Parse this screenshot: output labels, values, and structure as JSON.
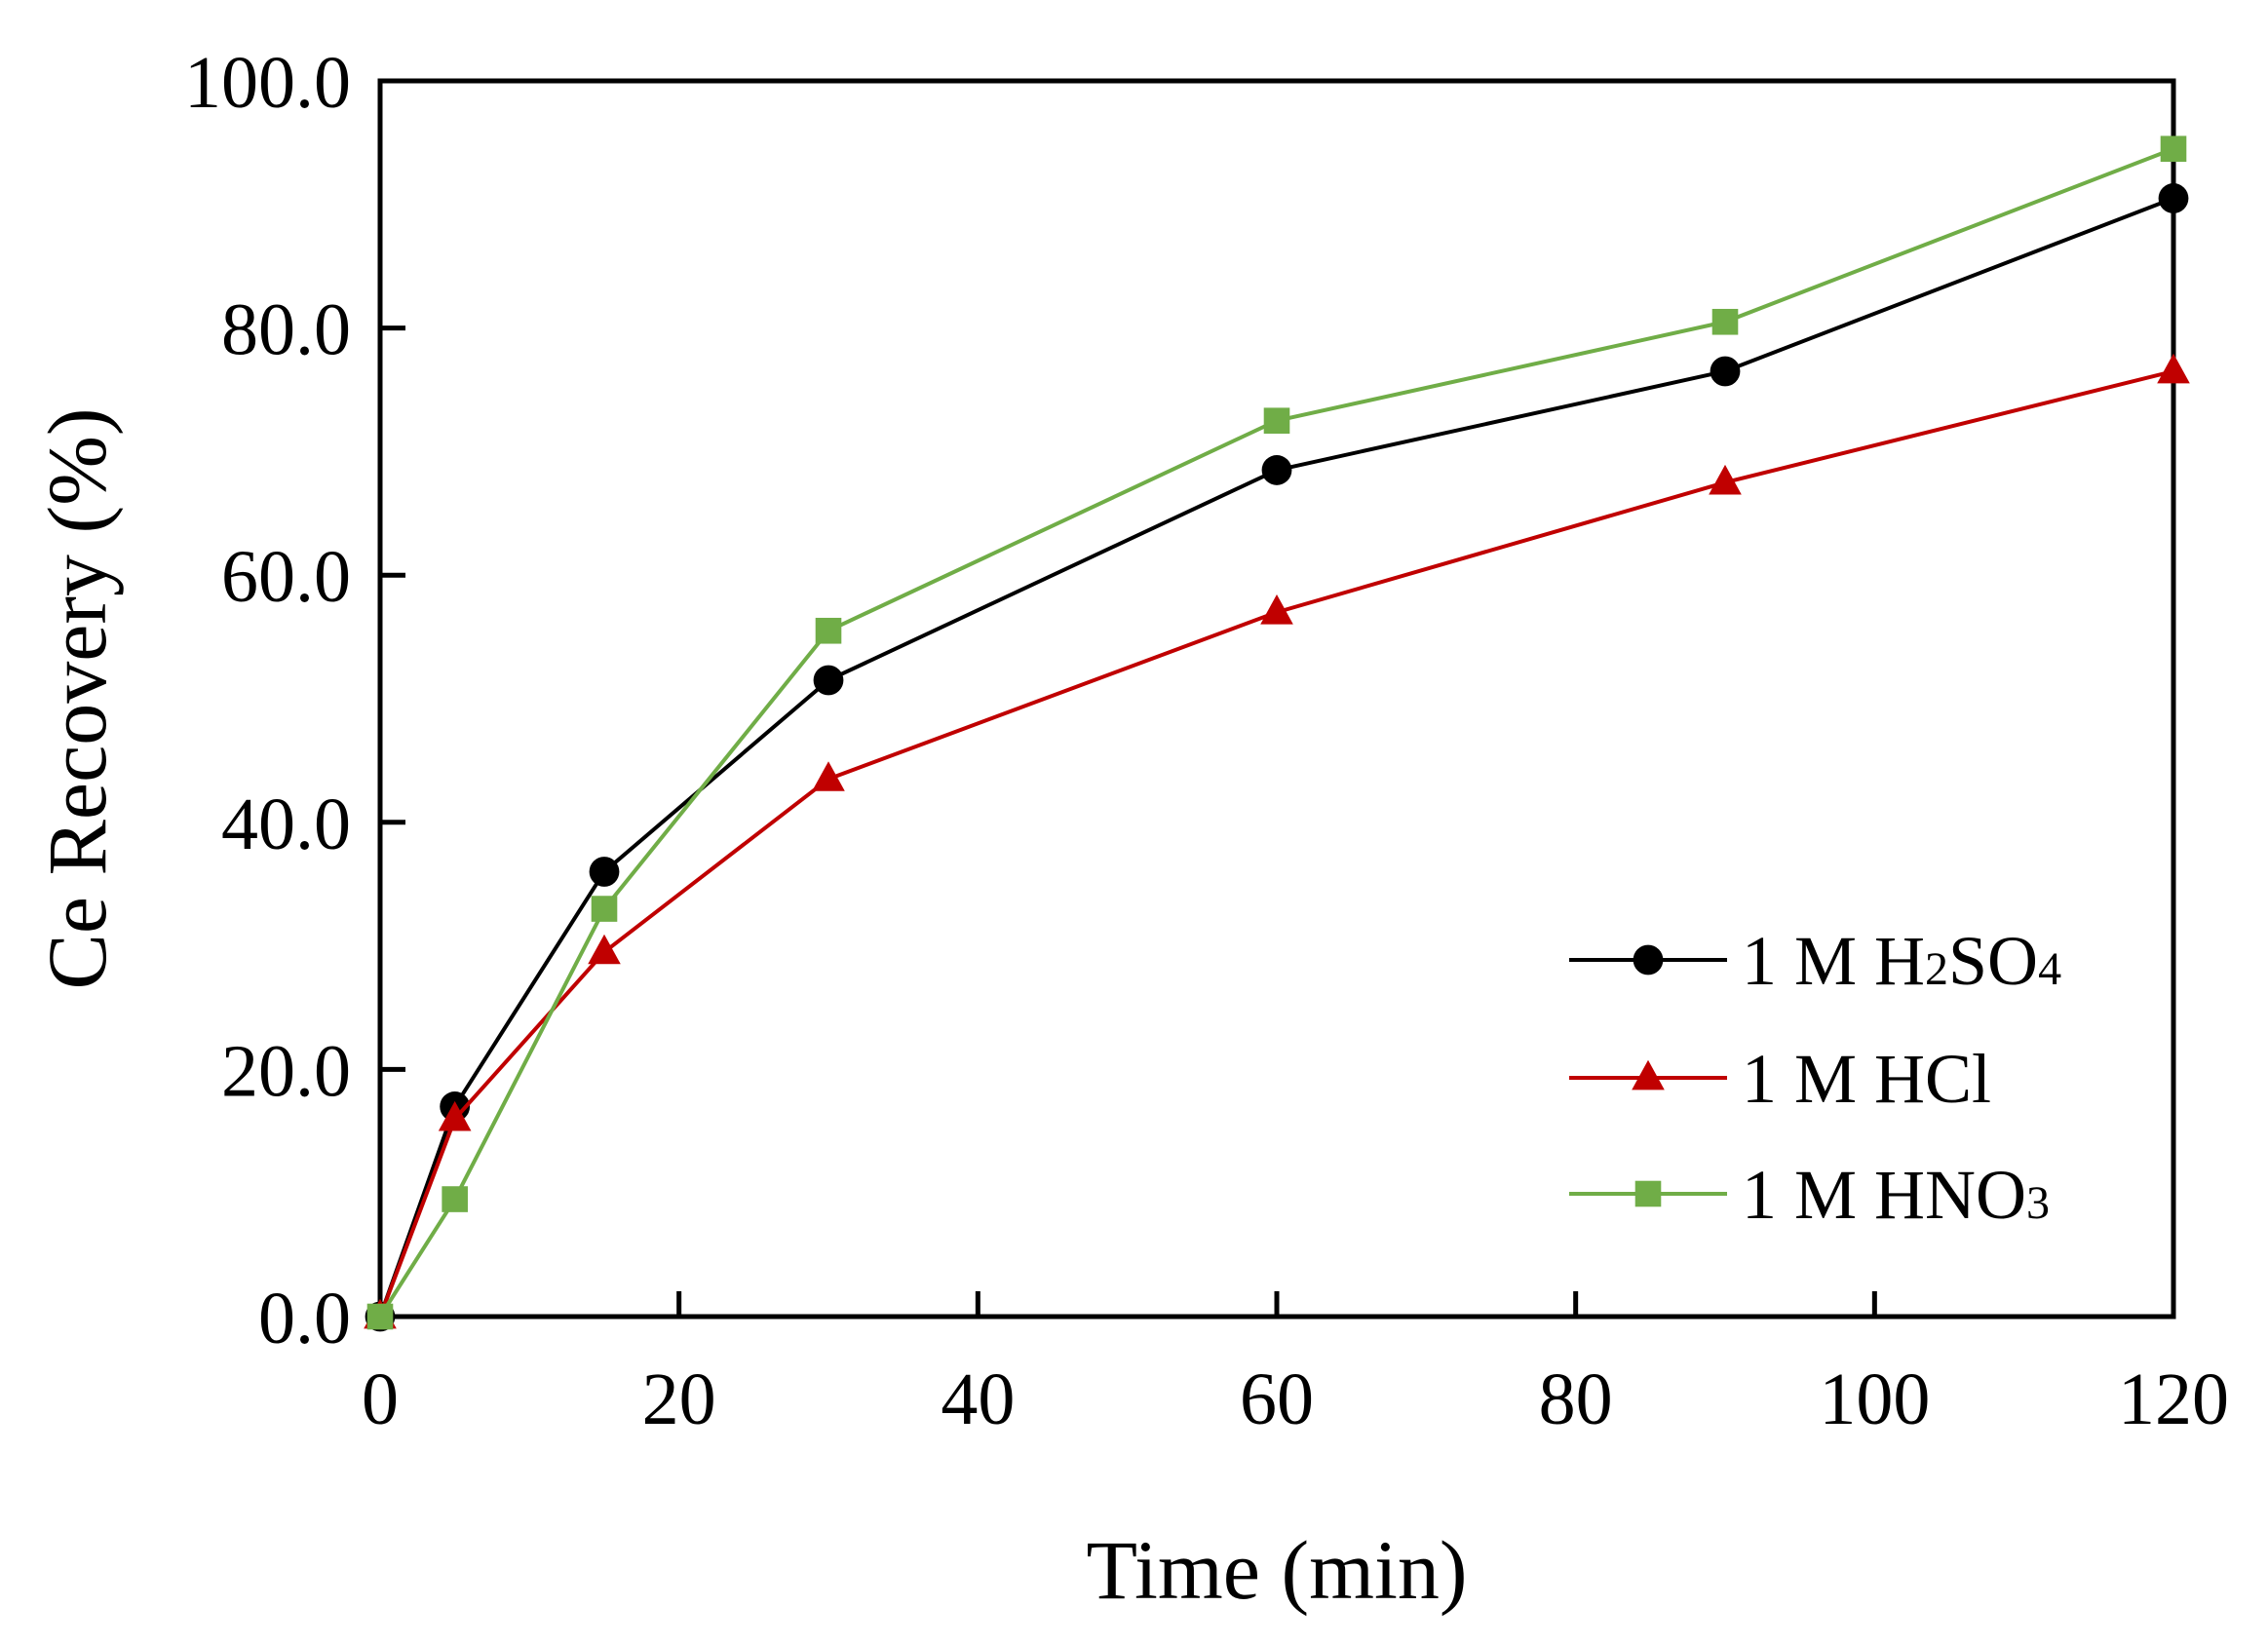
{
  "chart_data": {
    "type": "line",
    "title": "",
    "xlabel": "Time (min)",
    "ylabel": "Ce Recovery (%)",
    "xlim": [
      0,
      120
    ],
    "ylim": [
      0,
      100
    ],
    "x_ticks": [
      0,
      20,
      40,
      60,
      80,
      100,
      120
    ],
    "x_tick_labels": [
      "0",
      "20",
      "40",
      "60",
      "80",
      "100",
      "120"
    ],
    "y_ticks": [
      0,
      20,
      40,
      60,
      80,
      100
    ],
    "y_tick_labels": [
      "0.0",
      "20.0",
      "40.0",
      "60.0",
      "80.0",
      "100.0"
    ],
    "grid": false,
    "legend_position": "bottom-right",
    "x": [
      0,
      5,
      15,
      30,
      60,
      90,
      120
    ],
    "series": [
      {
        "name_parts": [
          "1 M H",
          "2",
          "SO",
          "4"
        ],
        "marker": "circle",
        "color": "#000000",
        "values": [
          0,
          17.0,
          36.0,
          51.5,
          68.5,
          76.5,
          90.5
        ]
      },
      {
        "name_parts": [
          "1 M HCl"
        ],
        "marker": "triangle",
        "color": "#c00000",
        "values": [
          0,
          16.0,
          29.5,
          43.5,
          57.0,
          67.5,
          76.5
        ]
      },
      {
        "name_parts": [
          "1 M HNO",
          "3"
        ],
        "marker": "square",
        "color": "#70ad47",
        "values": [
          0,
          9.5,
          33.0,
          55.5,
          72.5,
          80.5,
          94.5
        ]
      }
    ]
  }
}
